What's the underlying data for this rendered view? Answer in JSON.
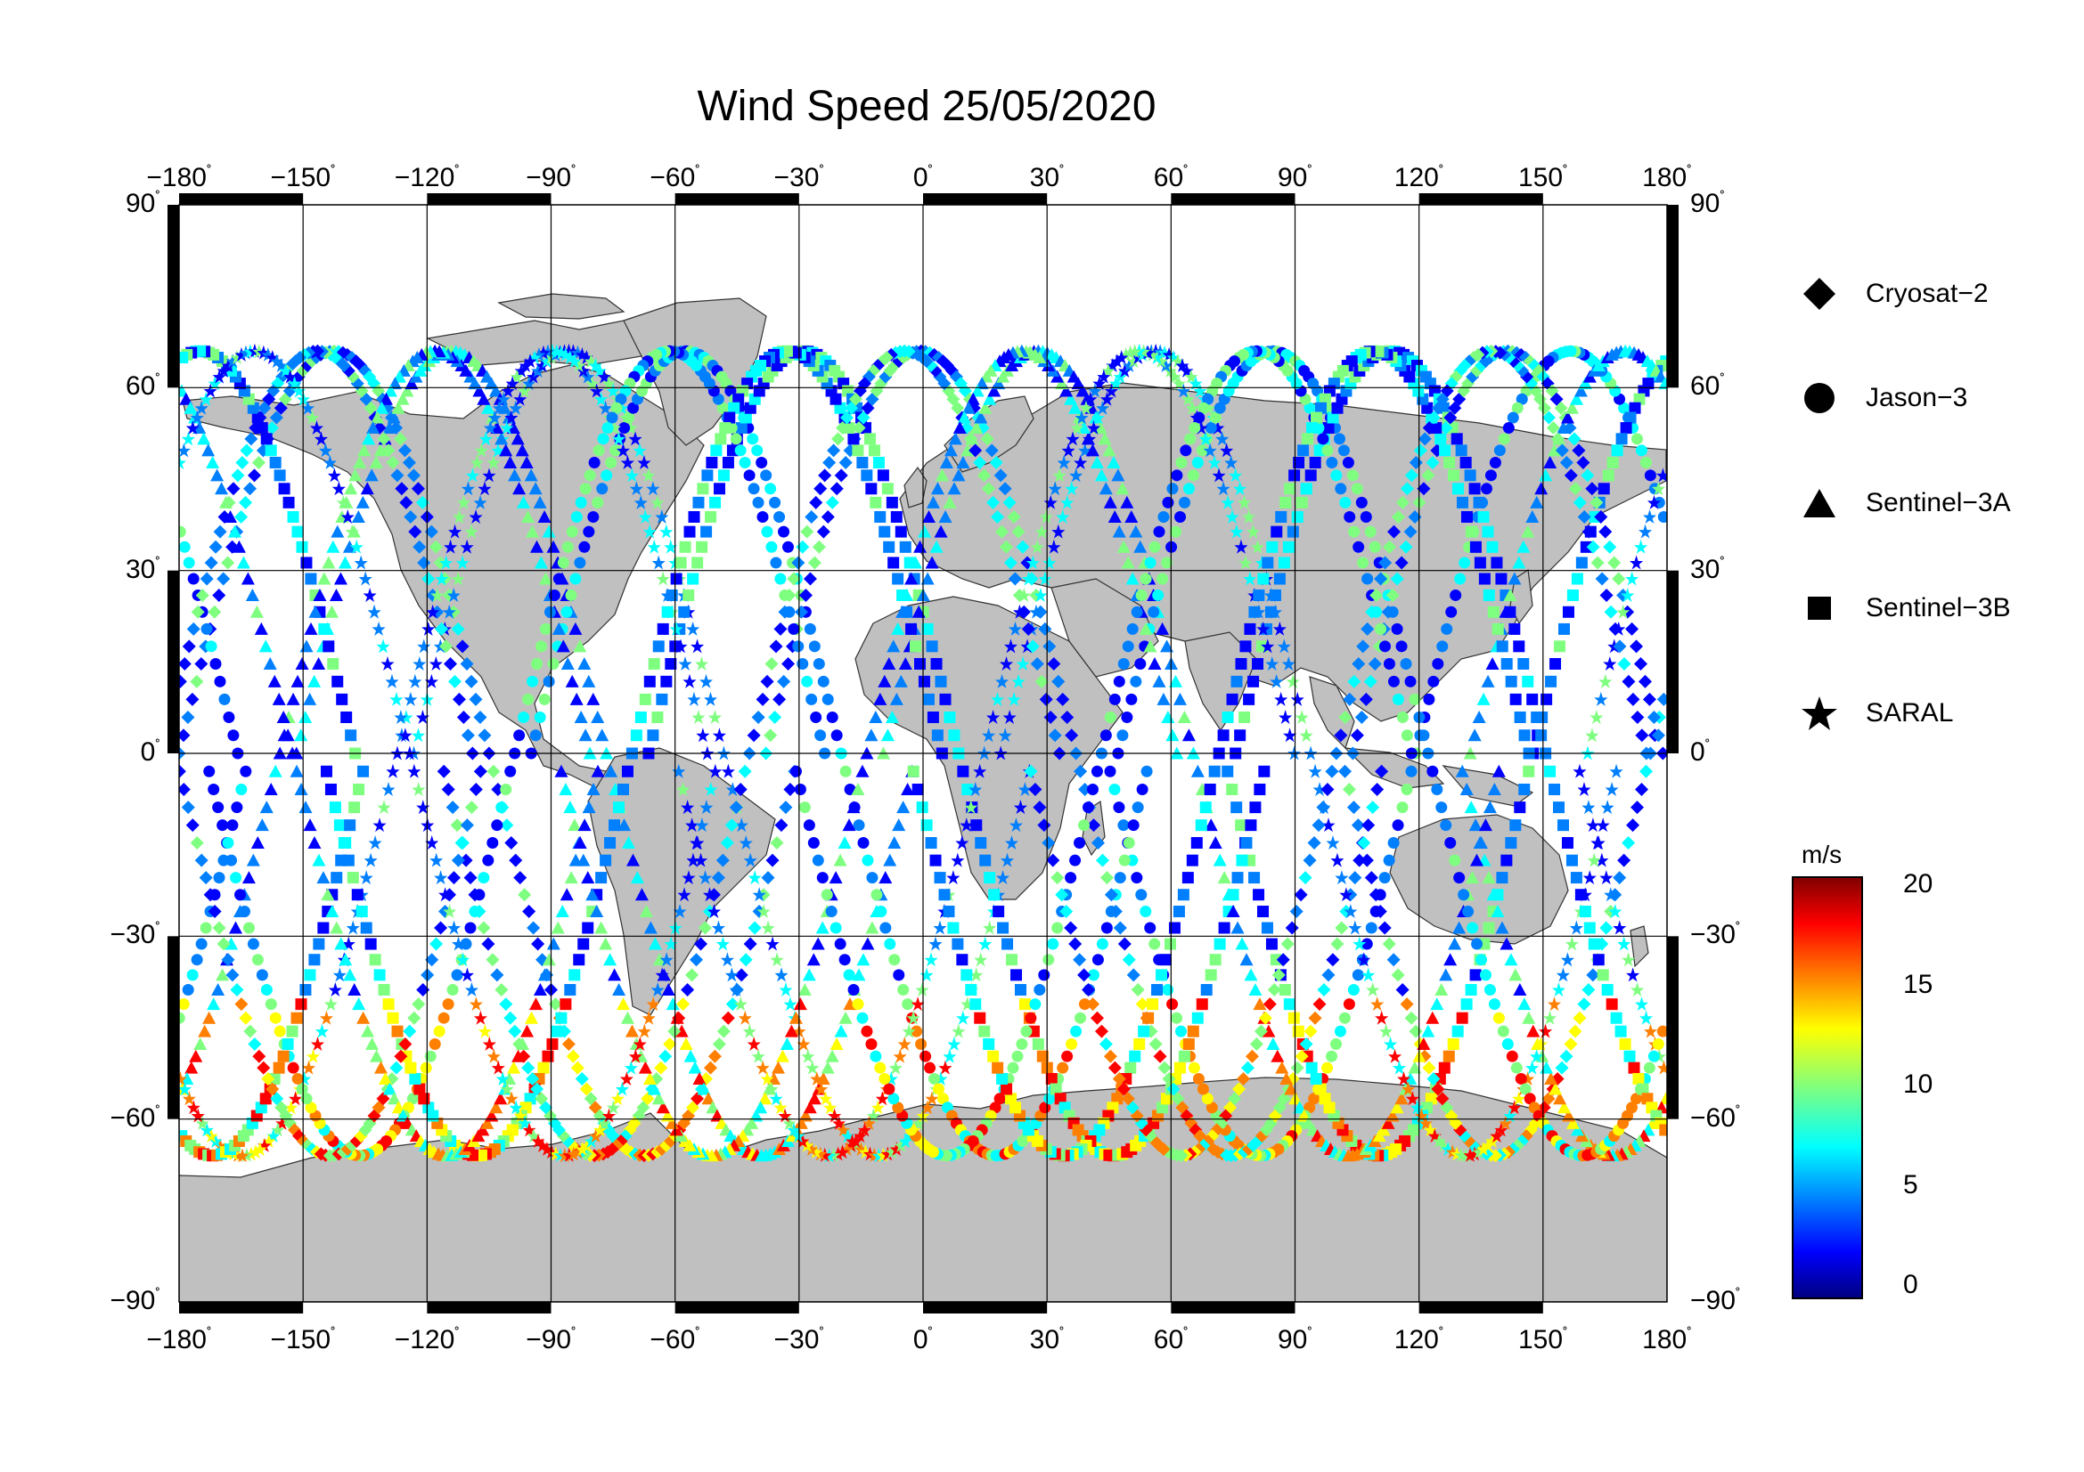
{
  "title": "Wind Speed 25/05/2020",
  "axes": {
    "lon_labels": [
      "−180",
      "−150",
      "−120",
      "−90",
      "−60",
      "−30",
      "0",
      "30",
      "60",
      "90",
      "120",
      "150",
      "180"
    ],
    "lat_labels": [
      "90",
      "60",
      "30",
      "0",
      "−30",
      "−60",
      "−90"
    ],
    "degree_symbol": "˚"
  },
  "legend": {
    "items": [
      {
        "label": "Cryosat−2",
        "marker": "diamond"
      },
      {
        "label": "Jason−3",
        "marker": "circle"
      },
      {
        "label": "Sentinel−3A",
        "marker": "triangle"
      },
      {
        "label": "Sentinel−3B",
        "marker": "square"
      },
      {
        "label": "SARAL",
        "marker": "star"
      }
    ]
  },
  "colorbar": {
    "unit": "m/s",
    "ticks": [
      "20",
      "15",
      "10",
      "5",
      "0"
    ],
    "range": [
      0,
      21
    ],
    "colormap": "jet",
    "colors": [
      "#00007f",
      "#0000ff",
      "#007fff",
      "#00ffff",
      "#7fff7f",
      "#ffff00",
      "#ff7f00",
      "#ff0000",
      "#7f0000"
    ]
  },
  "map_style": {
    "land_color": "#c0c0c0",
    "ocean_color": "#ffffff",
    "grid_color": "#000000"
  }
}
